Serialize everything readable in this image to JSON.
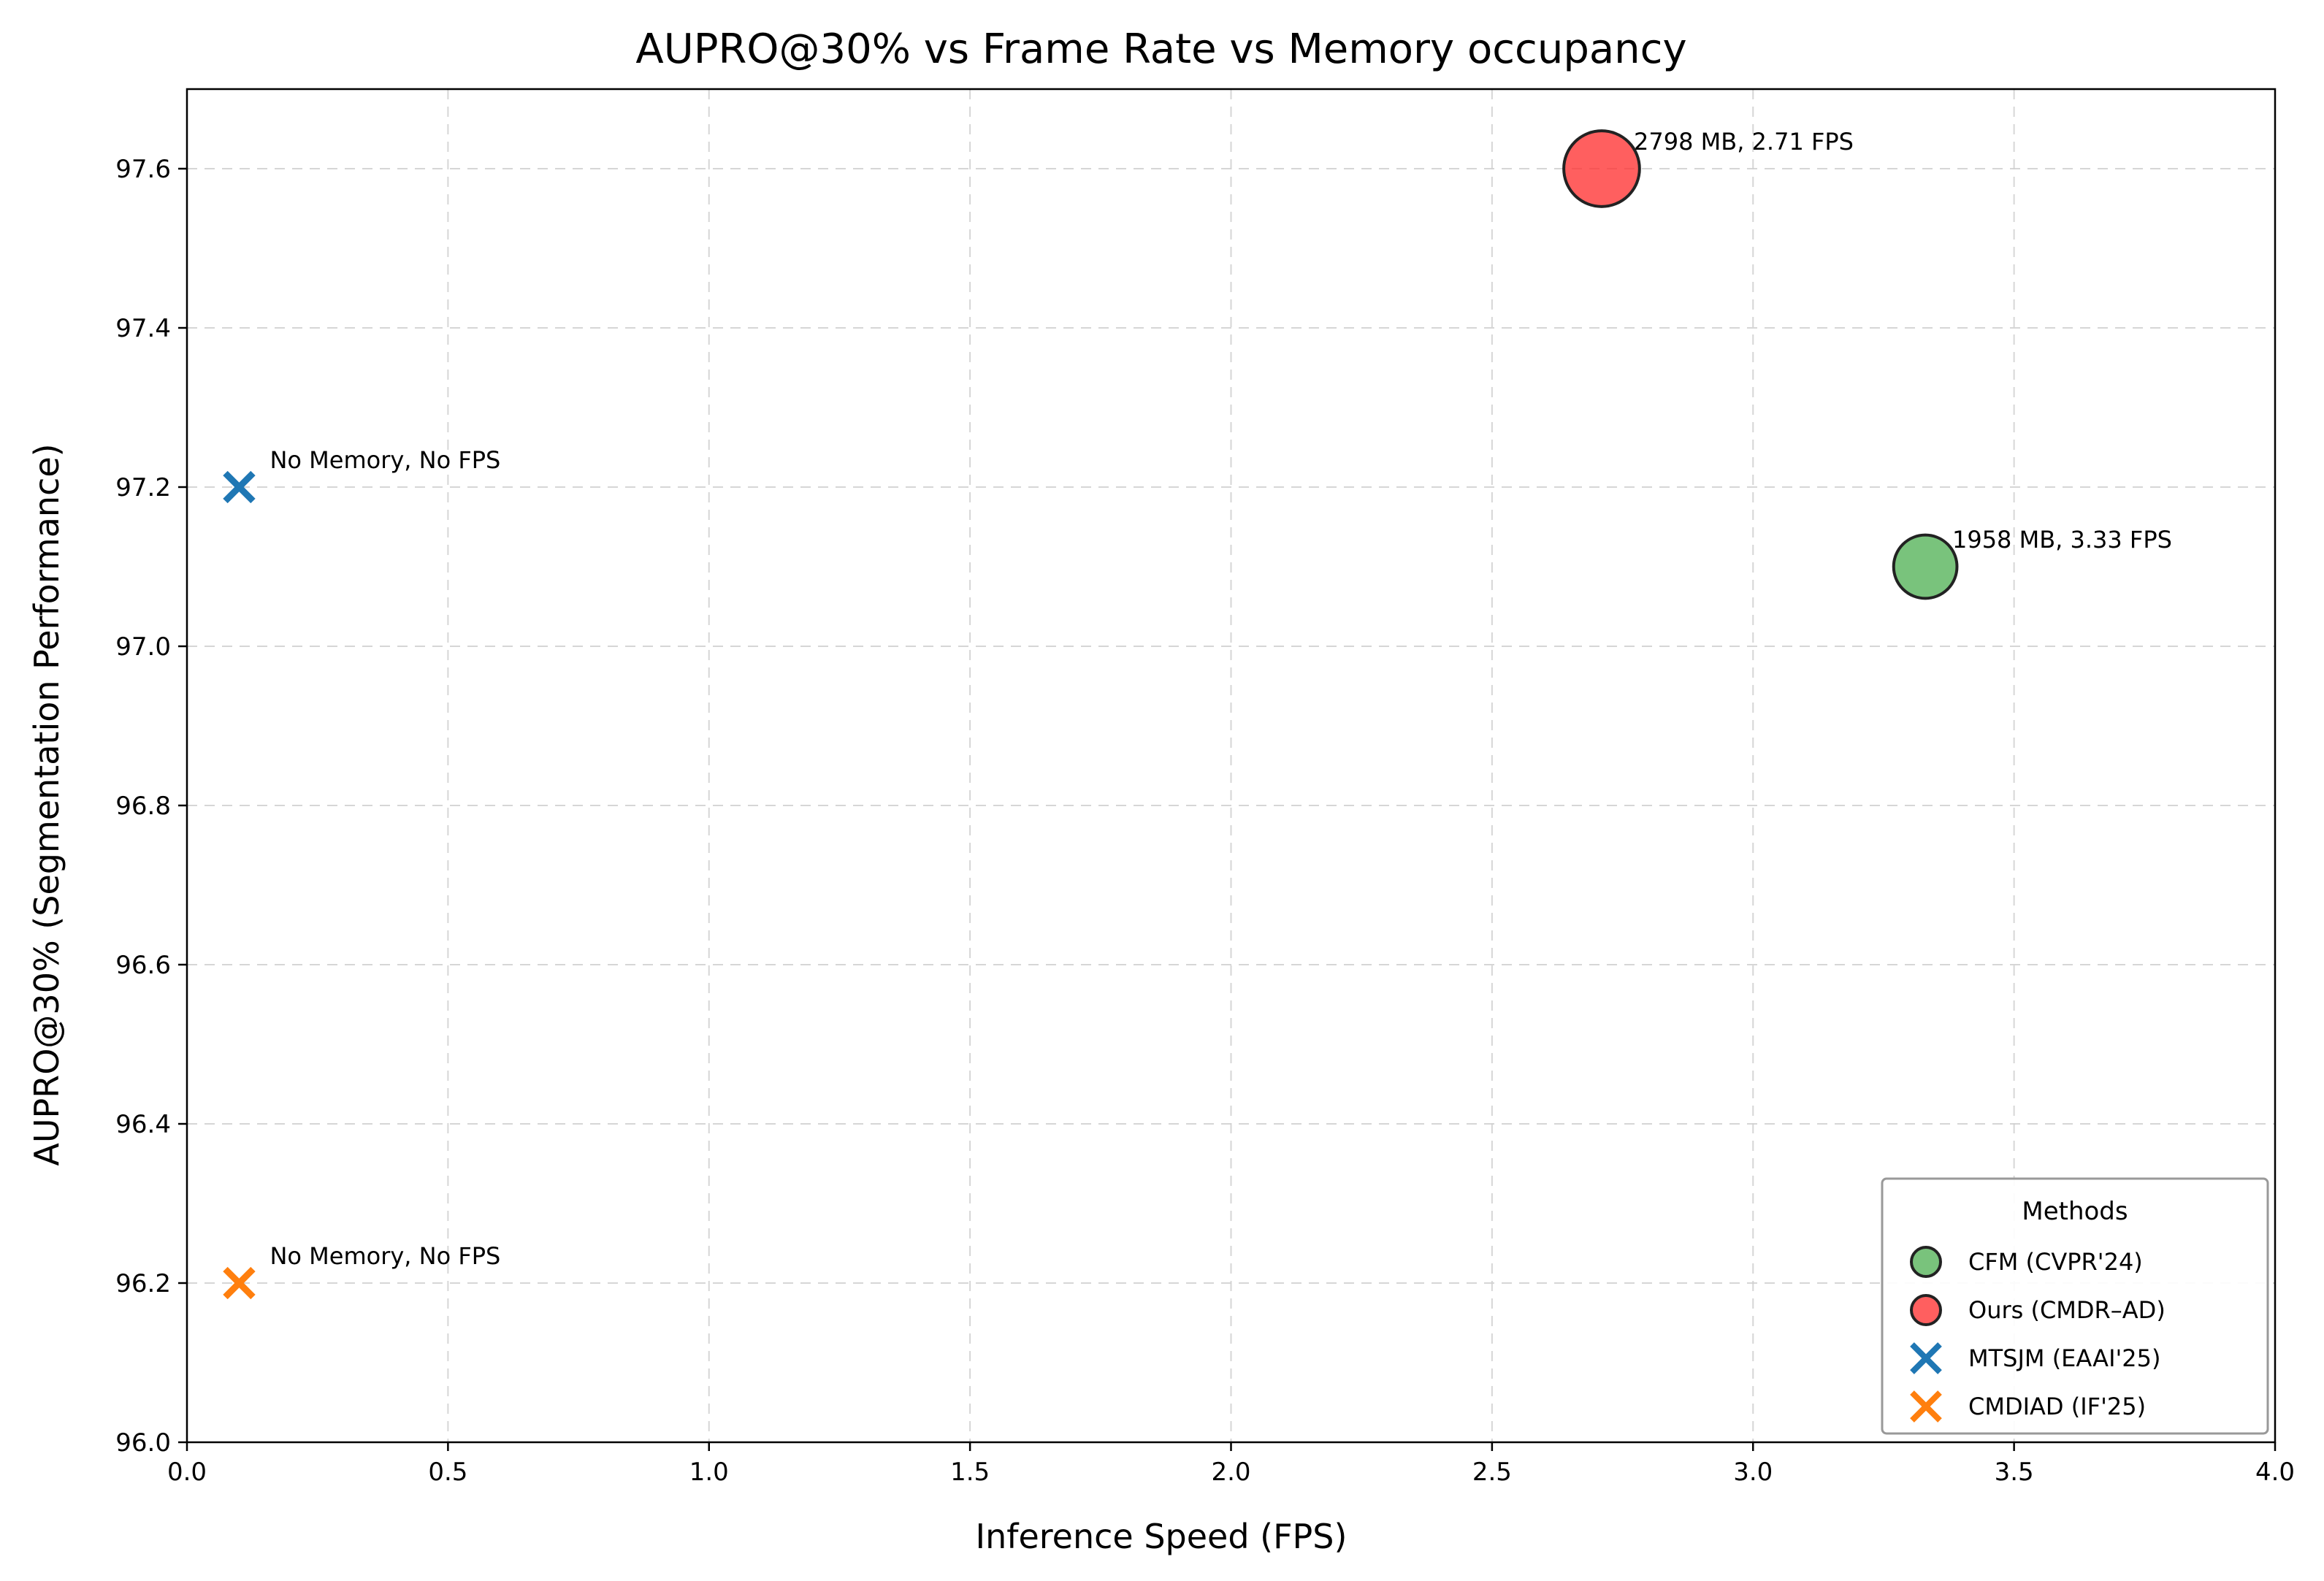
{
  "chart_data": {
    "type": "scatter",
    "title": "AUPRO@30% vs Frame Rate vs Memory occupancy",
    "xlabel": "Inference Speed (FPS)",
    "ylabel": "AUPRO@30% (Segmentation Performance)",
    "xlim": [
      0.0,
      4.0
    ],
    "ylim": [
      96.0,
      97.7
    ],
    "xticks": [
      0.0,
      0.5,
      1.0,
      1.5,
      2.0,
      2.5,
      3.0,
      3.5,
      4.0
    ],
    "xtick_labels": [
      "0.0",
      "0.5",
      "1.0",
      "1.5",
      "2.0",
      "2.5",
      "3.0",
      "3.5",
      "4.0"
    ],
    "yticks": [
      96.0,
      96.2,
      96.4,
      96.6,
      96.8,
      97.0,
      97.2,
      97.4,
      97.6
    ],
    "ytick_labels": [
      "96.0",
      "96.2",
      "96.4",
      "96.6",
      "96.8",
      "97.0",
      "97.2",
      "97.4",
      "97.6"
    ],
    "grid": true,
    "legend": {
      "title": "Methods",
      "placement": "lower-right"
    },
    "series": [
      {
        "name": "CFM (CVPR'24)",
        "marker": "circle",
        "color": "#4CAF50",
        "x": 3.33,
        "y": 97.1,
        "memory_mb": 1958,
        "annotation": "1958 MB, 3.33 FPS"
      },
      {
        "name": "Ours (CMDR–AD)",
        "marker": "circle",
        "color": "#FF2A2A",
        "x": 2.71,
        "y": 97.6,
        "memory_mb": 2798,
        "annotation": "2798 MB, 2.71 FPS"
      },
      {
        "name": "MTSJM (EAAI'25)",
        "marker": "x",
        "color": "#1F77B4",
        "x": 0.1,
        "y": 97.2,
        "annotation": "No Memory, No FPS"
      },
      {
        "name": "CMDIAD (IF'25)",
        "marker": "x",
        "color": "#FF7F0E",
        "x": 0.1,
        "y": 96.2,
        "annotation": "No Memory, No FPS"
      }
    ]
  }
}
